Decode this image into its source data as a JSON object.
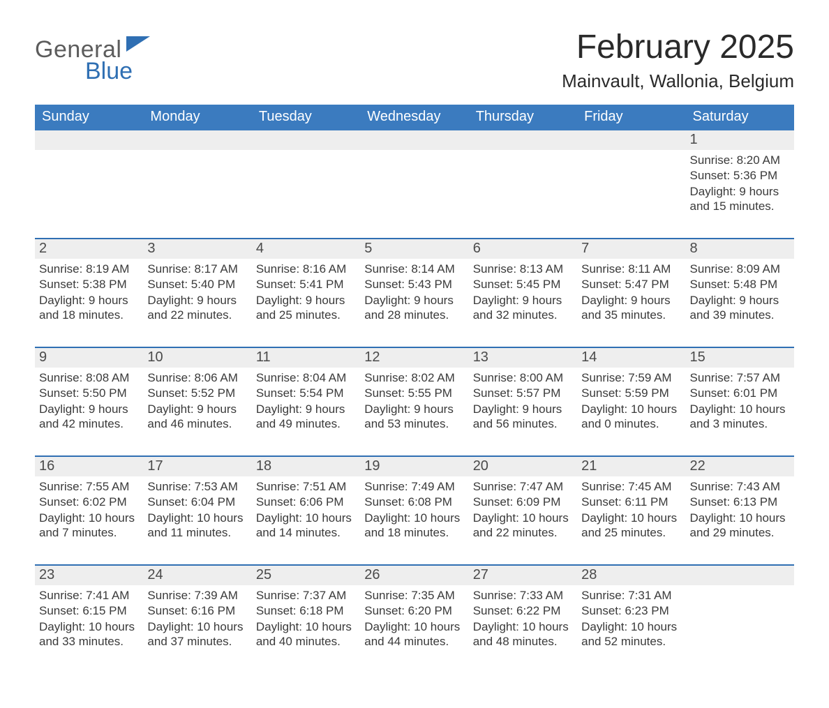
{
  "logo": {
    "line1": "General",
    "line2": "Blue"
  },
  "title": "February 2025",
  "location": "Mainvault, Wallonia, Belgium",
  "colors": {
    "header_blue": "#3b7bbf",
    "row_border": "#2f6fb3",
    "daynum_bg": "#eeeeee",
    "logo_gray": "#5c5c5c",
    "logo_blue": "#2f6fb3",
    "background": "#ffffff",
    "text": "#2a2a2a"
  },
  "typography": {
    "title_fontsize": 48,
    "location_fontsize": 26,
    "weekday_fontsize": 20,
    "daynum_fontsize": 20,
    "detail_fontsize": 17,
    "font_family": "Arial"
  },
  "layout": {
    "columns": 7,
    "week_rows": 5,
    "first_day_column_index": 6,
    "last_day_number": 28
  },
  "weekdays": [
    "Sunday",
    "Monday",
    "Tuesday",
    "Wednesday",
    "Thursday",
    "Friday",
    "Saturday"
  ],
  "labels": {
    "sunrise_prefix": "Sunrise: ",
    "sunset_prefix": "Sunset: ",
    "daylight_prefix": "Daylight: "
  },
  "days": {
    "1": {
      "sunrise": "8:20 AM",
      "sunset": "5:36 PM",
      "daylight": "9 hours and 15 minutes."
    },
    "2": {
      "sunrise": "8:19 AM",
      "sunset": "5:38 PM",
      "daylight": "9 hours and 18 minutes."
    },
    "3": {
      "sunrise": "8:17 AM",
      "sunset": "5:40 PM",
      "daylight": "9 hours and 22 minutes."
    },
    "4": {
      "sunrise": "8:16 AM",
      "sunset": "5:41 PM",
      "daylight": "9 hours and 25 minutes."
    },
    "5": {
      "sunrise": "8:14 AM",
      "sunset": "5:43 PM",
      "daylight": "9 hours and 28 minutes."
    },
    "6": {
      "sunrise": "8:13 AM",
      "sunset": "5:45 PM",
      "daylight": "9 hours and 32 minutes."
    },
    "7": {
      "sunrise": "8:11 AM",
      "sunset": "5:47 PM",
      "daylight": "9 hours and 35 minutes."
    },
    "8": {
      "sunrise": "8:09 AM",
      "sunset": "5:48 PM",
      "daylight": "9 hours and 39 minutes."
    },
    "9": {
      "sunrise": "8:08 AM",
      "sunset": "5:50 PM",
      "daylight": "9 hours and 42 minutes."
    },
    "10": {
      "sunrise": "8:06 AM",
      "sunset": "5:52 PM",
      "daylight": "9 hours and 46 minutes."
    },
    "11": {
      "sunrise": "8:04 AM",
      "sunset": "5:54 PM",
      "daylight": "9 hours and 49 minutes."
    },
    "12": {
      "sunrise": "8:02 AM",
      "sunset": "5:55 PM",
      "daylight": "9 hours and 53 minutes."
    },
    "13": {
      "sunrise": "8:00 AM",
      "sunset": "5:57 PM",
      "daylight": "9 hours and 56 minutes."
    },
    "14": {
      "sunrise": "7:59 AM",
      "sunset": "5:59 PM",
      "daylight": "10 hours and 0 minutes."
    },
    "15": {
      "sunrise": "7:57 AM",
      "sunset": "6:01 PM",
      "daylight": "10 hours and 3 minutes."
    },
    "16": {
      "sunrise": "7:55 AM",
      "sunset": "6:02 PM",
      "daylight": "10 hours and 7 minutes."
    },
    "17": {
      "sunrise": "7:53 AM",
      "sunset": "6:04 PM",
      "daylight": "10 hours and 11 minutes."
    },
    "18": {
      "sunrise": "7:51 AM",
      "sunset": "6:06 PM",
      "daylight": "10 hours and 14 minutes."
    },
    "19": {
      "sunrise": "7:49 AM",
      "sunset": "6:08 PM",
      "daylight": "10 hours and 18 minutes."
    },
    "20": {
      "sunrise": "7:47 AM",
      "sunset": "6:09 PM",
      "daylight": "10 hours and 22 minutes."
    },
    "21": {
      "sunrise": "7:45 AM",
      "sunset": "6:11 PM",
      "daylight": "10 hours and 25 minutes."
    },
    "22": {
      "sunrise": "7:43 AM",
      "sunset": "6:13 PM",
      "daylight": "10 hours and 29 minutes."
    },
    "23": {
      "sunrise": "7:41 AM",
      "sunset": "6:15 PM",
      "daylight": "10 hours and 33 minutes."
    },
    "24": {
      "sunrise": "7:39 AM",
      "sunset": "6:16 PM",
      "daylight": "10 hours and 37 minutes."
    },
    "25": {
      "sunrise": "7:37 AM",
      "sunset": "6:18 PM",
      "daylight": "10 hours and 40 minutes."
    },
    "26": {
      "sunrise": "7:35 AM",
      "sunset": "6:20 PM",
      "daylight": "10 hours and 44 minutes."
    },
    "27": {
      "sunrise": "7:33 AM",
      "sunset": "6:22 PM",
      "daylight": "10 hours and 48 minutes."
    },
    "28": {
      "sunrise": "7:31 AM",
      "sunset": "6:23 PM",
      "daylight": "10 hours and 52 minutes."
    }
  }
}
